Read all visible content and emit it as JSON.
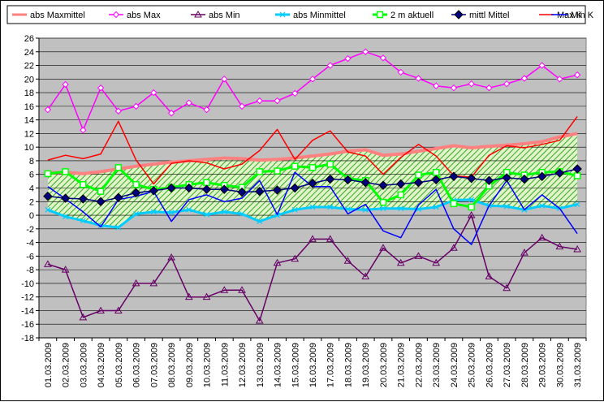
{
  "chart_data": {
    "type": "line",
    "title": "",
    "xlabel": "",
    "ylabel": "",
    "ylim": [
      -18,
      26
    ],
    "ystep": 2,
    "grid": "horizontal",
    "legend_position": "top",
    "background": "#c0c0c0",
    "categories": [
      "01.03.2009",
      "02.03.2009",
      "03.03.2009",
      "04.03.2009",
      "05.03.2009",
      "06.03.2009",
      "07.03.2009",
      "08.03.2009",
      "09.03.2009",
      "10.03.2009",
      "11.03.2009",
      "12.03.2009",
      "13.03.2009",
      "14.03.2009",
      "15.03.2009",
      "16.03.2009",
      "17.03.2009",
      "18.03.2009",
      "19.03.2009",
      "20.03.2009",
      "21.03.2009",
      "22.03.2009",
      "23.03.2009",
      "24.03.2009",
      "25.03.2009",
      "26.03.2009",
      "27.03.2009",
      "28.03.2009",
      "29.03.2009",
      "30.03.2009",
      "31.03.2009"
    ],
    "series": [
      {
        "name": "abs Maxmittel",
        "color": "#ff8080",
        "marker": "none",
        "width": 4,
        "values": [
          6.2,
          6.3,
          6.1,
          6.4,
          6.8,
          7.2,
          7.5,
          7.8,
          8.0,
          8.2,
          8.4,
          8.3,
          8.1,
          8.2,
          8.4,
          8.7,
          9.0,
          9.4,
          9.6,
          8.8,
          9.0,
          9.4,
          9.8,
          10.2,
          9.9,
          10.1,
          10.3,
          10.5,
          10.8,
          11.5,
          12.0
        ]
      },
      {
        "name": "abs Max",
        "color": "#ff00ff",
        "marker": "diamond-open",
        "width": 1.5,
        "values": [
          15.5,
          19.2,
          12.5,
          18.7,
          15.3,
          16.0,
          18.0,
          15.0,
          16.5,
          15.5,
          20.0,
          16.0,
          16.8,
          16.8,
          17.9,
          20.0,
          22.0,
          23.0,
          24.0,
          23.1,
          21.0,
          20.1,
          19.0,
          18.7,
          19.3,
          18.7,
          19.3,
          20.1,
          22.0,
          20.0,
          20.6
        ]
      },
      {
        "name": "abs Min",
        "color": "#660066",
        "marker": "triangle-open",
        "width": 1.5,
        "values": [
          -7.2,
          -8.0,
          -15.0,
          -14.0,
          -14.0,
          -10.0,
          -10.0,
          -6.2,
          -12.0,
          -12.0,
          -11.0,
          -11.0,
          -15.5,
          -7.0,
          -6.4,
          -3.5,
          -3.5,
          -6.7,
          -9.0,
          -4.8,
          -7.0,
          -6.0,
          -7.0,
          -4.8,
          0.0,
          -9.0,
          -10.7,
          -5.5,
          -3.3,
          -4.6,
          -5.0
        ]
      },
      {
        "name": "abs Minmittel",
        "color": "#00ccff",
        "marker": "x",
        "width": 3,
        "values": [
          0.8,
          -0.2,
          -0.8,
          -1.5,
          -1.8,
          0.2,
          0.5,
          0.4,
          0.8,
          0.1,
          0.5,
          0.2,
          -0.9,
          0.0,
          0.8,
          1.2,
          1.2,
          0.9,
          0.8,
          1.0,
          1.0,
          0.9,
          1.2,
          2.2,
          2.3,
          1.4,
          1.3,
          0.8,
          1.4,
          1.0,
          1.6
        ]
      },
      {
        "name": "2 m aktuell",
        "color": "#00ff00",
        "marker": "square-open",
        "width": 3,
        "values": [
          6.1,
          6.4,
          4.5,
          3.5,
          7.0,
          4.5,
          3.8,
          4.1,
          4.5,
          4.8,
          4.4,
          4.1,
          6.4,
          6.5,
          7.2,
          7.0,
          7.5,
          5.4,
          5.1,
          1.9,
          3.0,
          5.9,
          6.3,
          1.7,
          1.2,
          4.3,
          6.3,
          5.9,
          6.3,
          6.4,
          5.8
        ]
      },
      {
        "name": "mittl Mittel",
        "color": "#000080",
        "marker": "diamond",
        "width": 1.5,
        "values": [
          2.8,
          2.5,
          2.4,
          2.0,
          2.6,
          3.3,
          3.6,
          4.0,
          4.0,
          3.8,
          3.8,
          3.4,
          3.5,
          3.7,
          4.0,
          4.7,
          5.3,
          5.2,
          4.8,
          4.4,
          4.6,
          4.8,
          5.2,
          5.7,
          5.4,
          5.1,
          5.5,
          5.3,
          5.7,
          6.2,
          6.8
        ]
      },
      {
        "name": "Max K",
        "color": "#ff0000",
        "marker": "none",
        "width": 1.5,
        "values": [
          8.1,
          8.8,
          8.3,
          9.0,
          13.8,
          8.1,
          4.6,
          7.6,
          8.0,
          7.7,
          6.8,
          7.5,
          9.5,
          12.6,
          8.2,
          11.0,
          12.4,
          9.3,
          8.7,
          6.0,
          8.5,
          10.4,
          8.7,
          5.8,
          5.6,
          8.8,
          10.2,
          9.9,
          10.4,
          11.0,
          14.5
        ]
      },
      {
        "name": "Min K",
        "color": "#0000ff",
        "marker": "none",
        "width": 1.5,
        "values": [
          4.2,
          2.4,
          0.5,
          -1.7,
          2.3,
          2.8,
          3.5,
          -0.9,
          2.3,
          3.0,
          2.0,
          2.5,
          5.1,
          0.1,
          6.3,
          4.2,
          4.2,
          0.2,
          1.6,
          -2.3,
          -3.3,
          1.5,
          3.8,
          -2.0,
          -4.3,
          1.4,
          5.1,
          0.8,
          3.0,
          1.0,
          -2.7
        ]
      }
    ]
  }
}
